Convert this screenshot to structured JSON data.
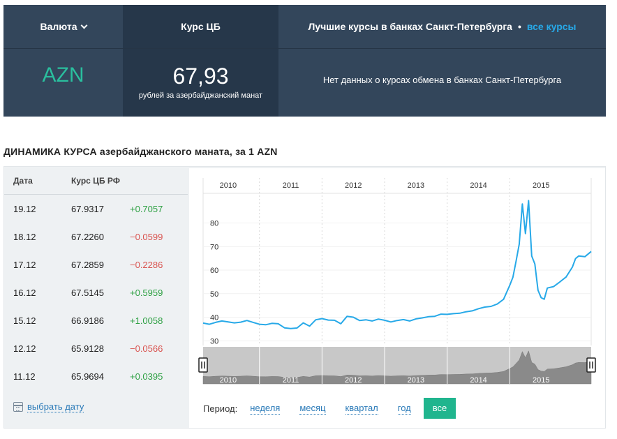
{
  "header": {
    "currency_select_label": "Валюта",
    "cb_rate_label": "Курс ЦБ",
    "banks_title": "Лучшие курсы в банках Санкт-Петербурга",
    "bullet": "•",
    "all_rates_link": "все курсы",
    "currency_code": "AZN",
    "rate_value": "67,93",
    "rate_caption": "рублей за азербайджанский манат",
    "no_data_text": "Нет данных о курсах обмена в банках Санкт-Петербурга"
  },
  "section_title": "ДИНАМИКА КУРСА азербайджанского маната, за 1 AZN",
  "table": {
    "headers": {
      "date": "Дата",
      "rate": "Курс ЦБ РФ"
    },
    "rows": [
      {
        "date": "19.12",
        "rate": "67.9317",
        "change": "+0.7057",
        "trend": "pos"
      },
      {
        "date": "18.12",
        "rate": "67.2260",
        "change": "−0.0599",
        "trend": "neg"
      },
      {
        "date": "17.12",
        "rate": "67.2859",
        "change": "−0.2286",
        "trend": "neg"
      },
      {
        "date": "16.12",
        "rate": "67.5145",
        "change": "+0.5959",
        "trend": "pos"
      },
      {
        "date": "15.12",
        "rate": "66.9186",
        "change": "+1.0058",
        "trend": "pos"
      },
      {
        "date": "12.12",
        "rate": "65.9128",
        "change": "−0.0566",
        "trend": "neg"
      },
      {
        "date": "11.12",
        "rate": "65.9694",
        "change": "+0.0395",
        "trend": "pos"
      }
    ],
    "pick_date_link": "выбрать дату",
    "calendar_icon": "calendar-icon"
  },
  "period": {
    "label": "Период:",
    "options": [
      "неделя",
      "месяц",
      "квартал",
      "год"
    ],
    "active": "все"
  },
  "colors": {
    "line": "#27a9e8",
    "navigator_fill": "#8a8a8a",
    "accent_green": "#20b58e",
    "header_bg": "#33465b"
  },
  "chart_data": {
    "type": "line",
    "years": [
      "2010",
      "2011",
      "2012",
      "2013",
      "2014",
      "2015"
    ],
    "y_ticks": [
      30,
      40,
      50,
      60,
      70,
      80
    ],
    "ylim": [
      28,
      92
    ],
    "xlim": [
      2009.6,
      2015.8
    ],
    "series": [
      {
        "x": [
          2009.6,
          2009.7,
          2009.8,
          2009.9,
          2010.0,
          2010.1,
          2010.2,
          2010.3,
          2010.4,
          2010.5,
          2010.6,
          2010.7,
          2010.8,
          2010.9,
          2011.0,
          2011.1,
          2011.2,
          2011.3,
          2011.4,
          2011.5,
          2011.6,
          2011.7,
          2011.8,
          2011.9,
          2012.0,
          2012.1,
          2012.2,
          2012.3,
          2012.4,
          2012.5,
          2012.6,
          2012.7,
          2012.8,
          2012.9,
          2013.0,
          2013.1,
          2013.2,
          2013.3,
          2013.4,
          2013.5,
          2013.6,
          2013.7,
          2013.8,
          2013.9,
          2014.0,
          2014.1,
          2014.2,
          2014.3,
          2014.4,
          2014.5,
          2014.55,
          2014.6,
          2014.65,
          2014.7,
          2014.75,
          2014.8,
          2014.85,
          2014.9,
          2014.95,
          2015.0,
          2015.05,
          2015.1,
          2015.2,
          2015.3,
          2015.4,
          2015.5,
          2015.55,
          2015.6,
          2015.7,
          2015.8
        ],
        "y": [
          37.5,
          37.0,
          37.8,
          38.4,
          38.0,
          37.6,
          37.9,
          38.6,
          37.8,
          37.0,
          36.8,
          37.4,
          37.2,
          35.5,
          35.2,
          35.4,
          37.6,
          36.2,
          38.9,
          39.4,
          38.8,
          38.7,
          37.2,
          40.4,
          40.0,
          38.6,
          38.9,
          38.4,
          39.2,
          38.7,
          38.0,
          38.6,
          39.0,
          38.4,
          39.3,
          39.7,
          40.2,
          40.4,
          41.3,
          41.2,
          41.5,
          41.7,
          42.3,
          42.7,
          43.6,
          44.3,
          44.6,
          45.6,
          47.6,
          53.6,
          57.0,
          63.8,
          71.0,
          88.1,
          75.5,
          89.5,
          66.0,
          62.6,
          51.5,
          48.3,
          47.6,
          52.4,
          53.0,
          55.0,
          57.1,
          61.3,
          64.9,
          66.0,
          65.7,
          67.9
        ]
      }
    ]
  }
}
